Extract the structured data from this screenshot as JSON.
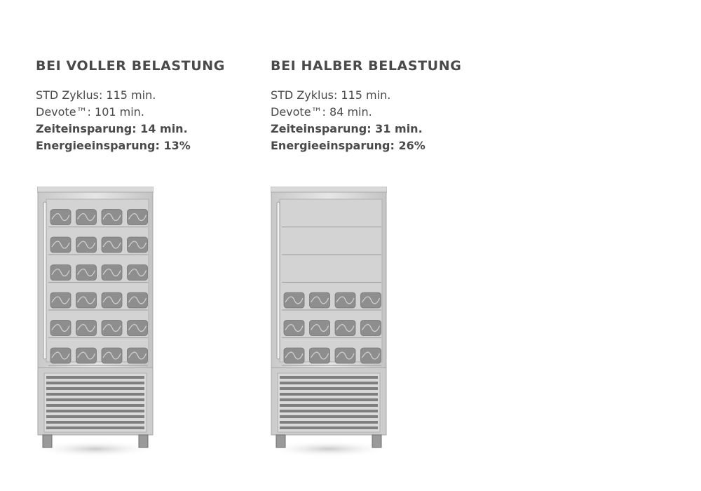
{
  "columns": [
    {
      "heading": "BEI VOLLER BELASTUNG",
      "lines": [
        {
          "text": "STD Zyklus: 115 min.",
          "bold": false
        },
        {
          "text": "Devote™: 101 min.",
          "bold": false
        },
        {
          "text": "Zeiteinsparung: 14 min.",
          "bold": true
        },
        {
          "text": "Energieeinsparung: 13%",
          "bold": true
        }
      ],
      "filled_shelves": 6
    },
    {
      "heading": "BEI HALBER BELASTUNG",
      "lines": [
        {
          "text": "STD Zyklus: 115 min.",
          "bold": false
        },
        {
          "text": "Devote™: 84 min.",
          "bold": false
        },
        {
          "text": "Zeiteinsparung: 31 min.",
          "bold": true
        },
        {
          "text": "Energieeinsparung: 26%",
          "bold": true
        }
      ],
      "filled_shelves": 3
    }
  ],
  "cabinet": {
    "total_shelves": 6,
    "pans_per_shelf": 4
  },
  "colors": {
    "text": "#4a4a4a",
    "steel": "#d6d6d6",
    "pan": "#8e8e8e"
  }
}
